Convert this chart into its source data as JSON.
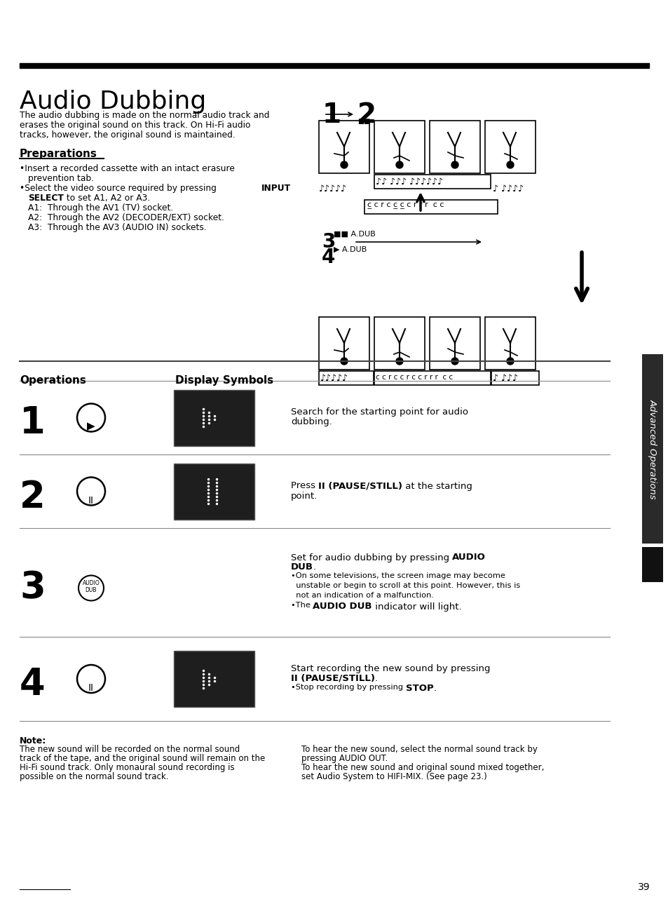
{
  "title": "Audio Dubbing",
  "bg_color": "#ffffff",
  "page_number": "39",
  "sidebar_text": "Advanced Operations",
  "intro_text_parts": [
    [
      "The audio dubbing is made on the normal audio track and",
      false
    ],
    [
      "erases the original sound on this track. On ",
      false
    ],
    [
      "Hi-Fi",
      true
    ],
    [
      " audio",
      false
    ],
    [
      "tracks, however, the original sound is maintained.",
      false
    ]
  ],
  "preparations_title": "Preparations",
  "ops_title": "Operations",
  "display_title": "Display Symbols",
  "note_title": "Note:",
  "note_left_lines": [
    "The new sound will be recorded on the normal sound",
    "track of the tape, and the original sound will remain on the",
    "Hi-Fi sound track. Only monaural sound recording is",
    "possible on the normal sound track."
  ],
  "note_right_lines": [
    "To hear the new sound, select the normal sound track by",
    "pressing AUDIO OUT.",
    "To hear the new sound and original sound mixed together,",
    "set Audio System to HIFI-MIX. (See page 23.)"
  ]
}
